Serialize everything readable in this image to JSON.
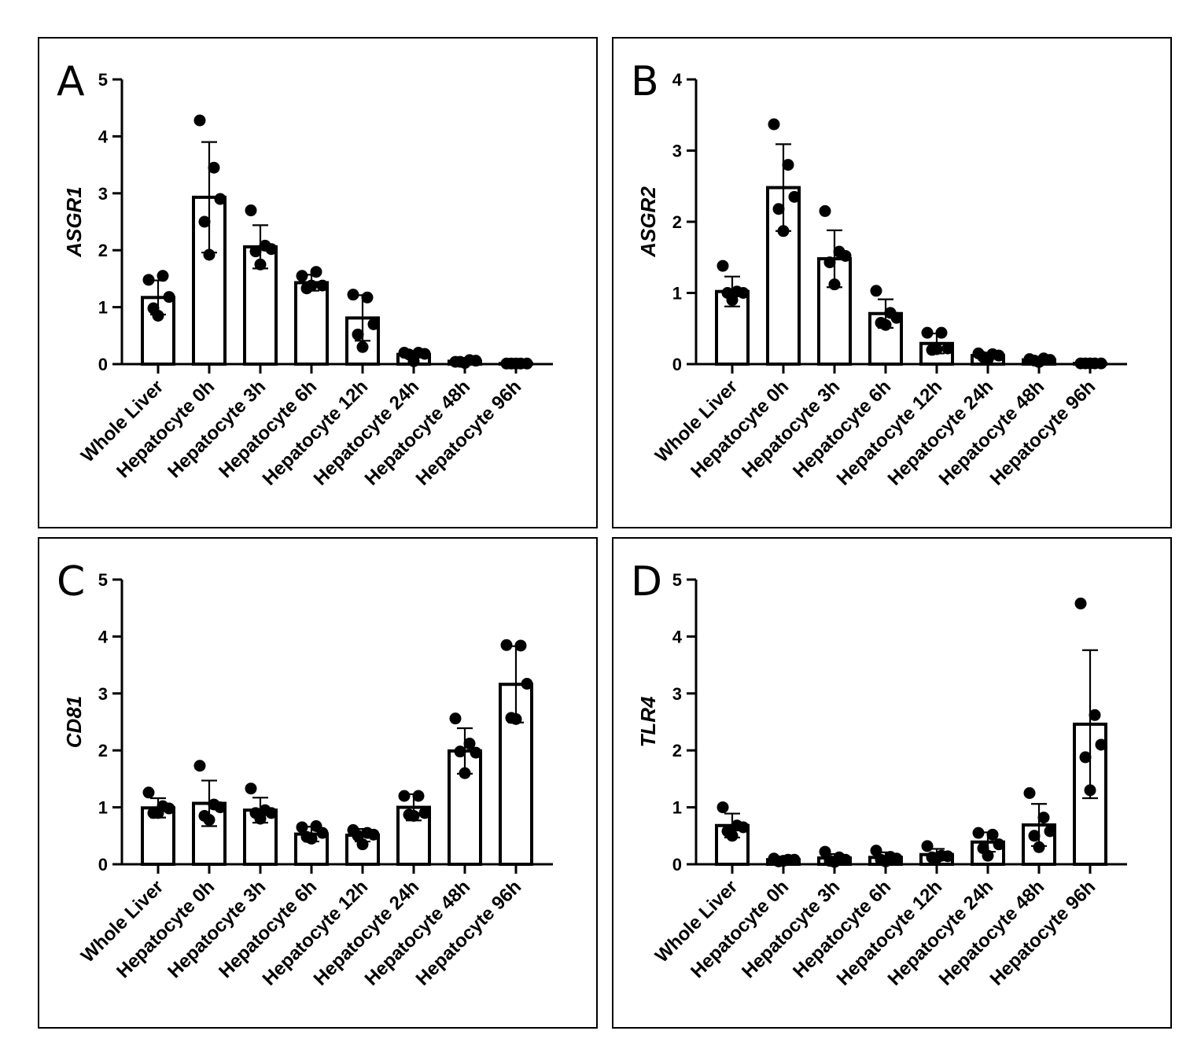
{
  "chart_data": [
    {
      "panel": "A",
      "type": "bar",
      "ylabel": "ASGR1",
      "ylim": [
        0,
        5
      ],
      "yticks": [
        "0",
        "1",
        "2",
        "3",
        "4",
        "5"
      ],
      "categories": [
        "Whole Liver",
        "Hepatocyte 0h",
        "Hepatocyte 3h",
        "Hepatocyte 6h",
        "Hepatocyte 12h",
        "Hepatocyte 24h",
        "Hepatocyte 48h",
        "Hepatocyte 96h"
      ],
      "values": [
        1.17,
        2.93,
        2.06,
        1.43,
        0.81,
        0.17,
        0.05,
        0.01
      ],
      "sd": [
        0.3,
        0.97,
        0.38,
        0.14,
        0.4,
        0.05,
        0.03,
        0.01
      ],
      "points": [
        [
          1.48,
          1.55,
          1.18,
          0.98,
          0.85
        ],
        [
          4.28,
          3.45,
          2.9,
          2.5,
          1.92
        ],
        [
          2.7,
          2.08,
          2.02,
          1.98,
          1.75
        ],
        [
          1.55,
          1.62,
          1.38,
          1.33,
          1.38
        ],
        [
          1.22,
          1.17,
          0.7,
          0.52,
          0.3
        ],
        [
          0.2,
          0.2,
          0.18,
          0.17,
          0.05
        ],
        [
          0.04,
          0.07,
          0.06,
          0.04,
          0.02
        ],
        [
          0.01,
          0.01,
          0.01,
          0.01,
          0.01
        ]
      ]
    },
    {
      "panel": "B",
      "type": "bar",
      "ylabel": "ASGR2",
      "ylim": [
        0,
        4
      ],
      "yticks": [
        "0",
        "1",
        "2",
        "3",
        "4"
      ],
      "categories": [
        "Whole Liver",
        "Hepatocyte 0h",
        "Hepatocyte 3h",
        "Hepatocyte 6h",
        "Hepatocyte 12h",
        "Hepatocyte 24h",
        "Hepatocyte 48h",
        "Hepatocyte 96h"
      ],
      "values": [
        1.02,
        2.48,
        1.48,
        0.71,
        0.29,
        0.12,
        0.06,
        0.01
      ],
      "sd": [
        0.21,
        0.61,
        0.4,
        0.2,
        0.14,
        0.04,
        0.03,
        0.01
      ],
      "points": [
        [
          1.38,
          1.02,
          1.0,
          1.0,
          0.9
        ],
        [
          3.37,
          2.8,
          2.35,
          2.18,
          1.87
        ],
        [
          2.15,
          1.58,
          1.52,
          1.43,
          1.12
        ],
        [
          1.03,
          0.72,
          0.65,
          0.58,
          0.55
        ],
        [
          0.44,
          0.44,
          0.22,
          0.2,
          0.21
        ],
        [
          0.15,
          0.14,
          0.12,
          0.1,
          0.07
        ],
        [
          0.07,
          0.08,
          0.06,
          0.05,
          0.03
        ],
        [
          0.01,
          0.01,
          0.01,
          0.01,
          0.01
        ]
      ]
    },
    {
      "panel": "C",
      "type": "bar",
      "ylabel": "CD81",
      "ylim": [
        0,
        5
      ],
      "yticks": [
        "0",
        "1",
        "2",
        "3",
        "4",
        "5"
      ],
      "categories": [
        "Whole Liver",
        "Hepatocyte 0h",
        "Hepatocyte 3h",
        "Hepatocyte 6h",
        "Hepatocyte 12h",
        "Hepatocyte 24h",
        "Hepatocyte 48h",
        "Hepatocyte 96h"
      ],
      "values": [
        0.99,
        1.07,
        0.95,
        0.53,
        0.51,
        1.0,
        1.99,
        3.16
      ],
      "sd": [
        0.17,
        0.4,
        0.22,
        0.13,
        0.11,
        0.23,
        0.4,
        0.67
      ],
      "points": [
        [
          1.26,
          1.02,
          0.98,
          0.9,
          0.9
        ],
        [
          1.73,
          1.05,
          1.0,
          0.85,
          0.78
        ],
        [
          1.33,
          0.95,
          0.9,
          0.9,
          0.8
        ],
        [
          0.65,
          0.67,
          0.55,
          0.48,
          0.45
        ],
        [
          0.6,
          0.55,
          0.52,
          0.5,
          0.35
        ],
        [
          1.2,
          1.2,
          0.9,
          0.87,
          0.85
        ],
        [
          2.56,
          2.12,
          1.96,
          1.98,
          1.6
        ],
        [
          3.85,
          3.84,
          3.17,
          2.57,
          2.55
        ]
      ]
    },
    {
      "panel": "D",
      "type": "bar",
      "ylabel": "TLR4",
      "ylim": [
        0,
        5
      ],
      "yticks": [
        "0",
        "1",
        "2",
        "3",
        "4",
        "5"
      ],
      "categories": [
        "Whole Liver",
        "Hepatocyte 0h",
        "Hepatocyte 3h",
        "Hepatocyte 6h",
        "Hepatocyte 12h",
        "Hepatocyte 24h",
        "Hepatocyte 48h",
        "Hepatocyte 96h"
      ],
      "values": [
        0.68,
        0.08,
        0.11,
        0.12,
        0.17,
        0.39,
        0.69,
        2.46
      ],
      "sd": [
        0.21,
        0.04,
        0.07,
        0.09,
        0.1,
        0.17,
        0.37,
        1.3
      ],
      "points": [
        [
          1.0,
          0.68,
          0.65,
          0.58,
          0.5
        ],
        [
          0.1,
          0.08,
          0.08,
          0.05,
          0.06
        ],
        [
          0.22,
          0.12,
          0.08,
          0.06,
          0.04
        ],
        [
          0.24,
          0.13,
          0.1,
          0.08,
          0.05
        ],
        [
          0.32,
          0.15,
          0.14,
          0.12,
          0.11
        ],
        [
          0.55,
          0.52,
          0.35,
          0.28,
          0.15
        ],
        [
          1.25,
          0.82,
          0.58,
          0.5,
          0.3
        ],
        [
          4.58,
          2.62,
          2.1,
          1.88,
          1.3
        ]
      ]
    }
  ]
}
